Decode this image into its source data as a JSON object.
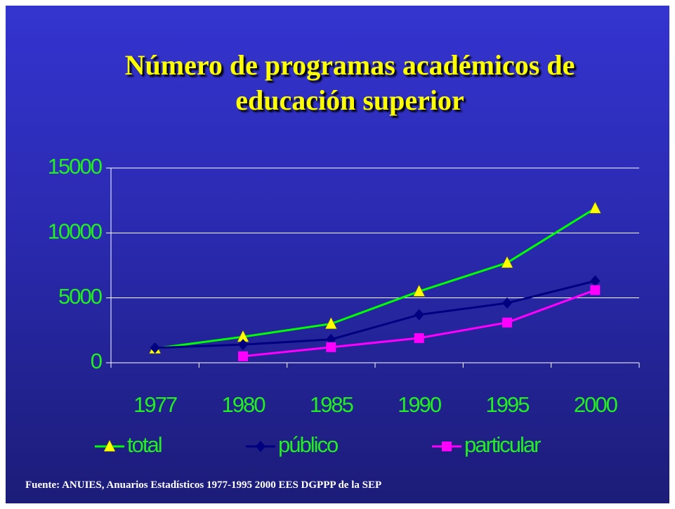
{
  "title": "Número de programas académicos de educación superior",
  "note": "Fuente: ANUIES, Anuarios Estadísticos 1977-1995  2000 EES DGPPP de la SEP",
  "chart_data": {
    "type": "line",
    "categories": [
      "1977",
      "1980",
      "1985",
      "1990",
      "1995",
      "2000"
    ],
    "series": [
      {
        "name": "total",
        "color": "#00ff00",
        "marker": "triangle",
        "marker_color": "#ffff00",
        "values": [
          1100,
          2000,
          3000,
          5500,
          7700,
          11900
        ]
      },
      {
        "name": "público",
        "color": "#000080",
        "marker": "diamond",
        "marker_color": "#000080",
        "values": [
          1150,
          1400,
          1800,
          3700,
          4600,
          6300
        ]
      },
      {
        "name": "particular",
        "color": "#ff00ff",
        "marker": "square",
        "marker_color": "#ff00ff",
        "values": [
          null,
          500,
          1200,
          1900,
          3100,
          5600
        ]
      }
    ],
    "ylim": [
      0,
      15000
    ],
    "yticks": [
      0,
      5000,
      10000,
      15000
    ],
    "grid": true,
    "legend": "bottom"
  }
}
